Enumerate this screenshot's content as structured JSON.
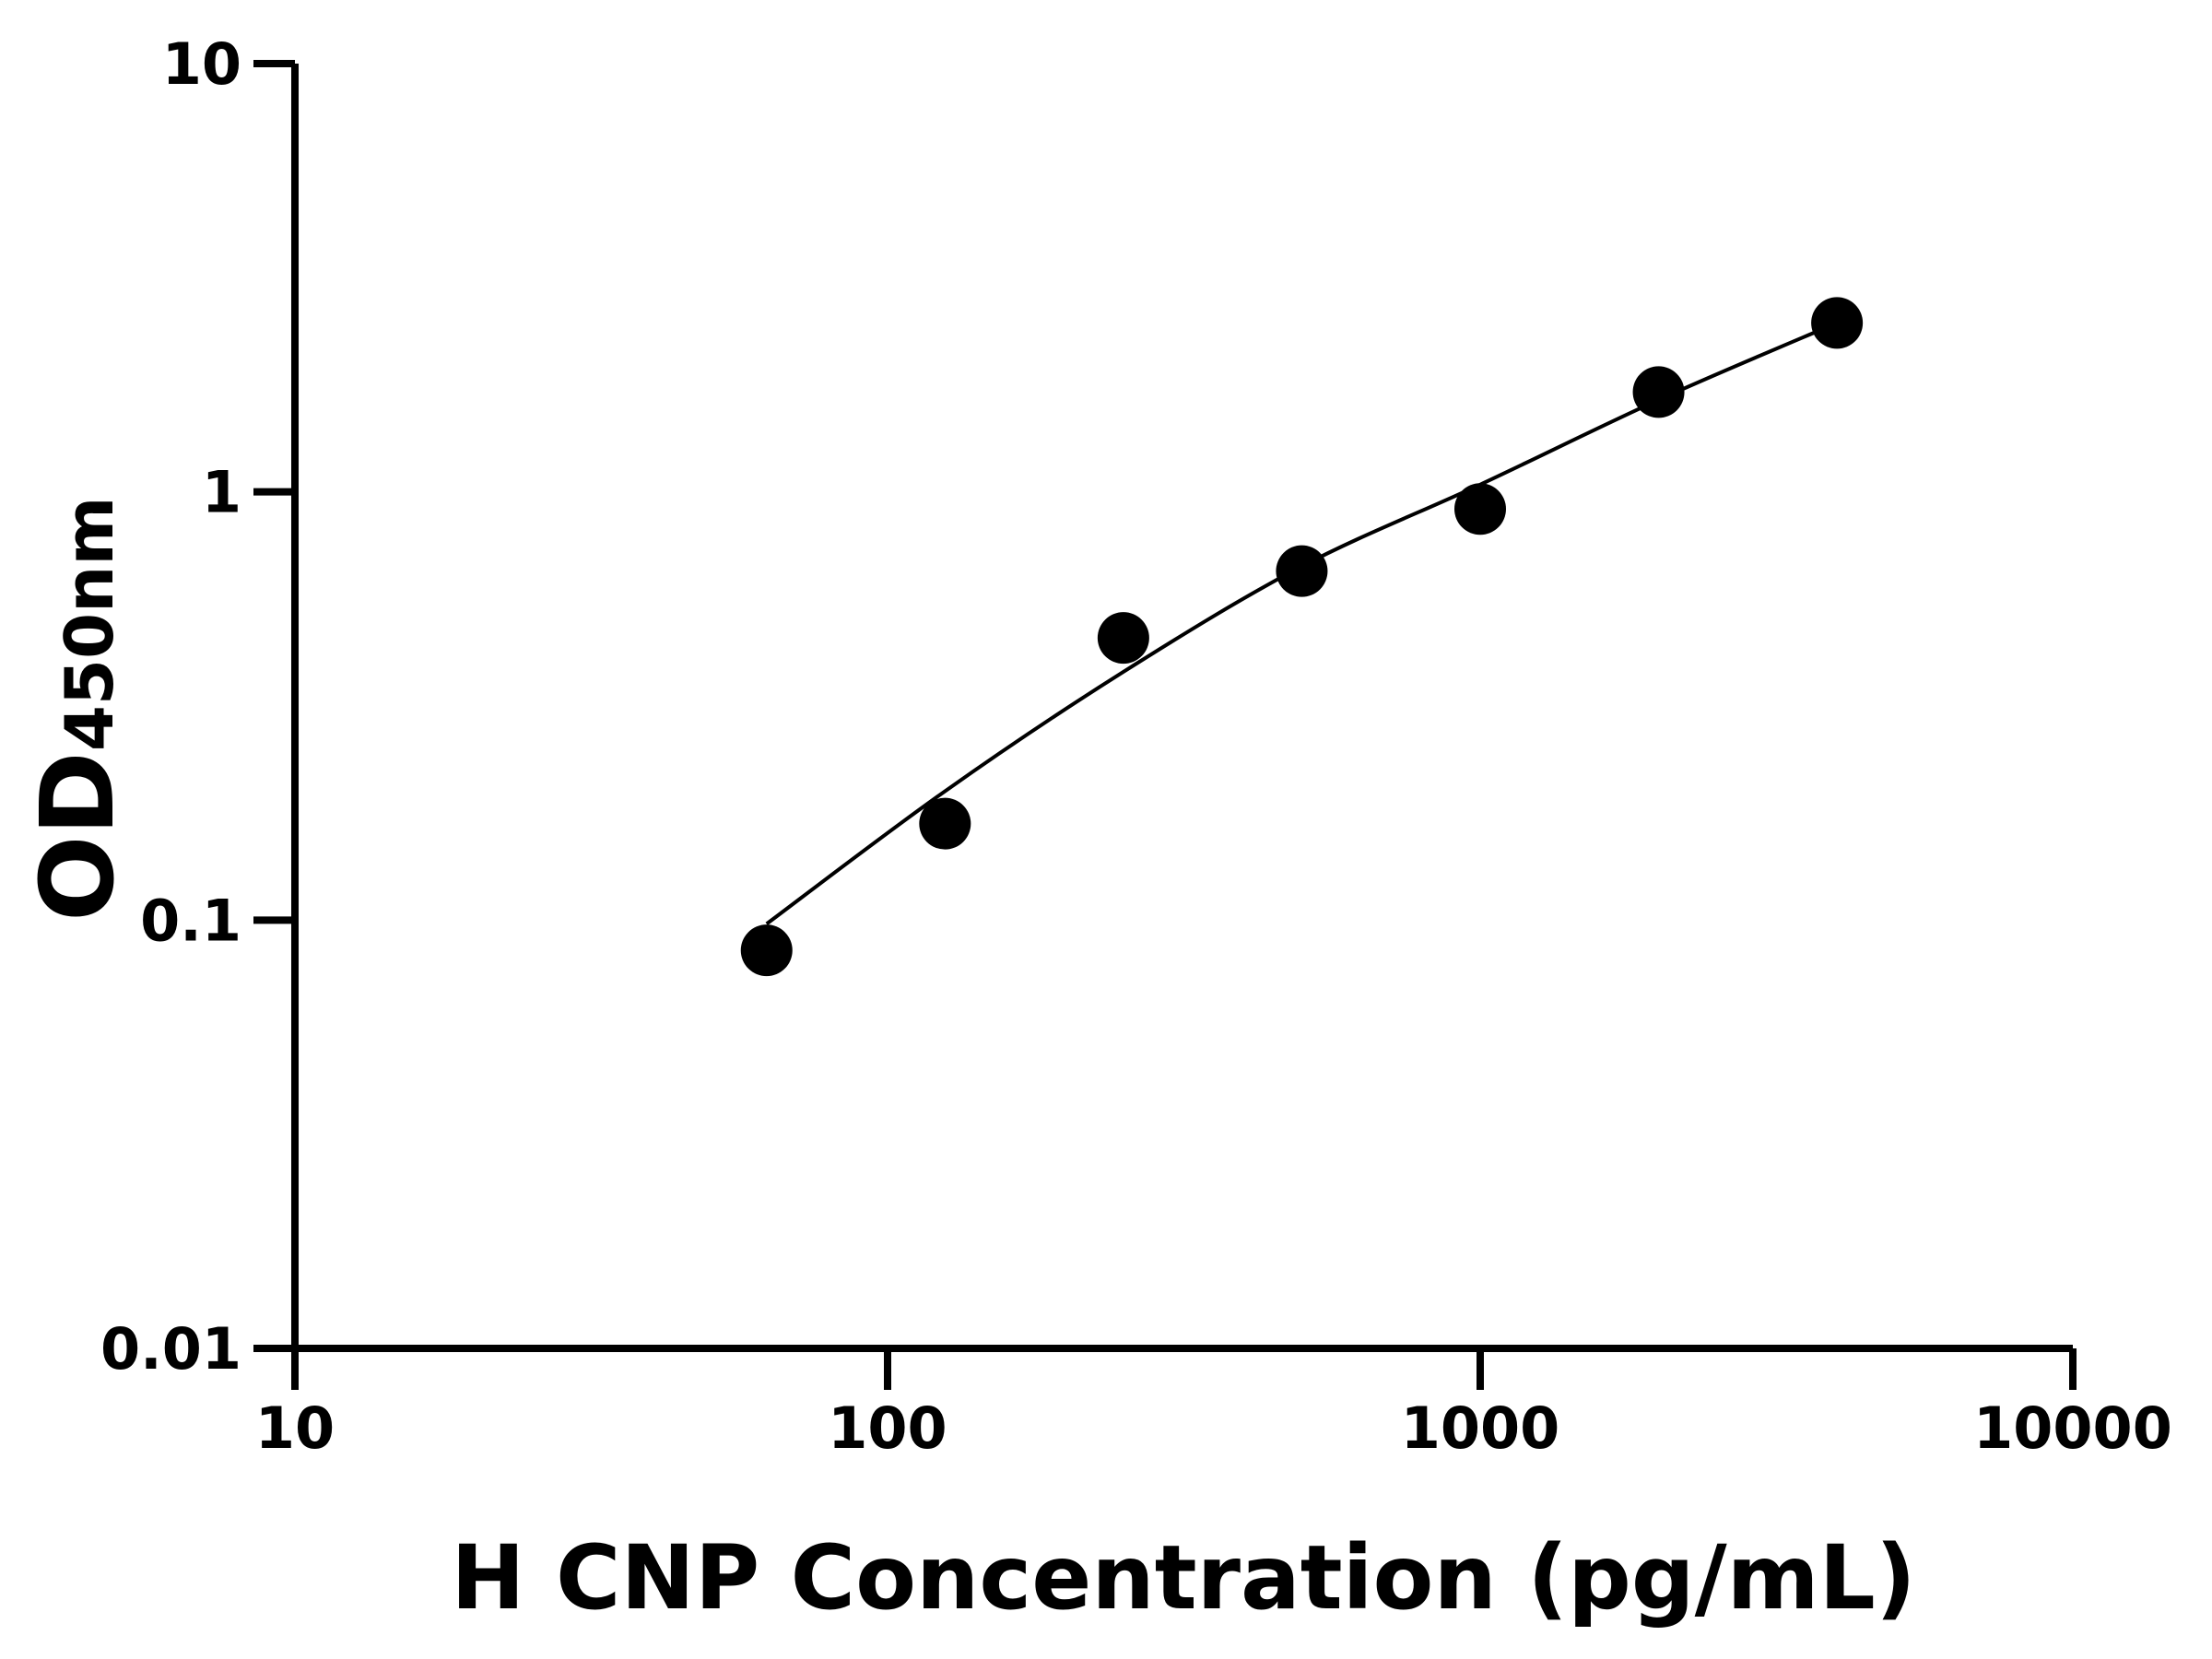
{
  "chart_data": {
    "type": "scatter",
    "title": "",
    "xlabel": "H CNP Concentration (pg/mL)",
    "ylabel": {
      "main": "OD",
      "subscript": "450nm"
    },
    "x_scale": "log",
    "y_scale": "log",
    "xlim": [
      10,
      10000
    ],
    "ylim": [
      0.01,
      10
    ],
    "x_ticks": [
      10,
      100,
      1000,
      10000
    ],
    "x_tick_labels": [
      "10",
      "100",
      "1000",
      "10000"
    ],
    "y_ticks": [
      0.01,
      0.1,
      1,
      10
    ],
    "y_tick_labels": [
      "0.01",
      "0.1",
      "1",
      "10"
    ],
    "grid": false,
    "color": "#000000",
    "points": {
      "x": [
        62.5,
        125,
        250,
        500,
        1000,
        2000,
        4000
      ],
      "y": [
        0.085,
        0.168,
        0.456,
        0.653,
        0.912,
        1.71,
        2.48
      ]
    },
    "fitted_curve": {
      "x": [
        62.5,
        125,
        250,
        500,
        1000,
        2000,
        4000
      ],
      "y": [
        0.098,
        0.2,
        0.38,
        0.67,
        1.04,
        1.64,
        2.48
      ]
    }
  }
}
